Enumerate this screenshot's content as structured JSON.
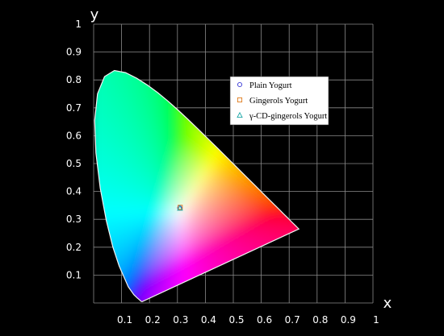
{
  "chart_data": {
    "type": "scatter",
    "title": "",
    "xlabel": "x",
    "ylabel": "y",
    "xlim": [
      0,
      1
    ],
    "ylim": [
      0,
      1
    ],
    "x_ticks": [
      "0.1",
      "0.2",
      "0.3",
      "0.4",
      "0.5",
      "0.6",
      "0.7",
      "0.8",
      "0.9",
      "1"
    ],
    "y_ticks": [
      "0.1",
      "0.2",
      "0.3",
      "0.4",
      "0.5",
      "0.6",
      "0.7",
      "0.8",
      "0.9",
      "1"
    ],
    "grid": true,
    "legend_position": "top-right",
    "background": "#000000",
    "series": [
      {
        "name": "Plain Yogurt",
        "marker": "circle",
        "color": "#3b3bd6",
        "points": [
          {
            "x": 0.308,
            "y": 0.341
          }
        ]
      },
      {
        "name": "Gingerols Yogurt",
        "marker": "square",
        "color": "#e07b1a",
        "points": [
          {
            "x": 0.31,
            "y": 0.343
          }
        ]
      },
      {
        "name": "γ-CD-gingerols Yogurt",
        "marker": "triangle",
        "color": "#19a6a6",
        "points": [
          {
            "x": 0.309,
            "y": 0.34
          }
        ]
      }
    ],
    "locus": [
      [
        0.1741,
        0.005
      ],
      [
        0.173,
        0.0048
      ],
      [
        0.1714,
        0.0051
      ],
      [
        0.1689,
        0.0069
      ],
      [
        0.1644,
        0.0109
      ],
      [
        0.1566,
        0.0177
      ],
      [
        0.144,
        0.0297
      ],
      [
        0.1241,
        0.0578
      ],
      [
        0.0913,
        0.1327
      ],
      [
        0.0687,
        0.2007
      ],
      [
        0.0454,
        0.295
      ],
      [
        0.0235,
        0.4127
      ],
      [
        0.0082,
        0.5384
      ],
      [
        0.0039,
        0.6548
      ],
      [
        0.0139,
        0.7502
      ],
      [
        0.0389,
        0.812
      ],
      [
        0.0743,
        0.8338
      ],
      [
        0.1142,
        0.8262
      ],
      [
        0.1547,
        0.8059
      ],
      [
        0.1929,
        0.7816
      ],
      [
        0.2296,
        0.7543
      ],
      [
        0.2658,
        0.7243
      ],
      [
        0.3016,
        0.6923
      ],
      [
        0.3373,
        0.6589
      ],
      [
        0.3731,
        0.6245
      ],
      [
        0.4087,
        0.5896
      ],
      [
        0.4441,
        0.5547
      ],
      [
        0.4788,
        0.5202
      ],
      [
        0.5125,
        0.4866
      ],
      [
        0.5448,
        0.4544
      ],
      [
        0.5752,
        0.4242
      ],
      [
        0.6029,
        0.3965
      ],
      [
        0.627,
        0.3725
      ],
      [
        0.6482,
        0.3514
      ],
      [
        0.6658,
        0.334
      ],
      [
        0.6801,
        0.3197
      ],
      [
        0.6915,
        0.3083
      ],
      [
        0.7006,
        0.2993
      ],
      [
        0.7079,
        0.292
      ],
      [
        0.714,
        0.2859
      ],
      [
        0.719,
        0.2809
      ],
      [
        0.723,
        0.277
      ],
      [
        0.726,
        0.274
      ],
      [
        0.7283,
        0.2717
      ],
      [
        0.73,
        0.27
      ],
      [
        0.7311,
        0.2689
      ],
      [
        0.732,
        0.268
      ],
      [
        0.7327,
        0.2673
      ],
      [
        0.7334,
        0.2666
      ],
      [
        0.734,
        0.266
      ],
      [
        0.7344,
        0.2656
      ],
      [
        0.7347,
        0.2653
      ]
    ]
  }
}
